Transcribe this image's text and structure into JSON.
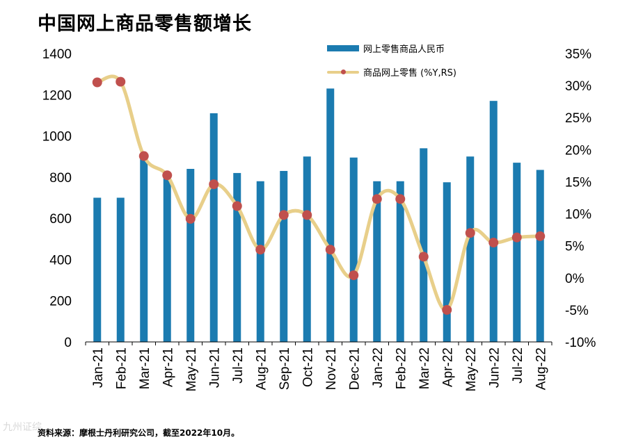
{
  "title": "中国网上商品零售额增长",
  "legend": {
    "bar_label": "网上零售商品人民币",
    "line_label": "商品网上零售 (%Y,RS)"
  },
  "footer": "资料来源：摩根士丹利研究公司，截至2022年10月。",
  "watermark": "九州证综",
  "colors": {
    "bar": "#1b7bb0",
    "line": "#e8cf8a",
    "marker": "#c0504d"
  },
  "chart_data": {
    "type": "bar+line",
    "categories": [
      "Jan-21",
      "Feb-21",
      "Mar-21",
      "Apr-21",
      "May-21",
      "Jun-21",
      "Jul-21",
      "Aug-21",
      "Sep-21",
      "Oct-21",
      "Nov-21",
      "Dec-21",
      "Jan-22",
      "Feb-22",
      "Mar-22",
      "Apr-22",
      "May-22",
      "Jun-22",
      "Jul-22",
      "Aug-22"
    ],
    "series": [
      {
        "name": "网上零售商品人民币",
        "type": "bar",
        "axis": "left",
        "values": [
          700,
          700,
          890,
          820,
          840,
          1110,
          820,
          780,
          830,
          900,
          1230,
          895,
          780,
          780,
          940,
          775,
          900,
          1170,
          870,
          835
        ]
      },
      {
        "name": "商品网上零售 (%Y,RS)",
        "type": "line",
        "axis": "right",
        "values": [
          30.5,
          30.6,
          19.0,
          16.0,
          9.2,
          14.6,
          11.2,
          4.4,
          9.8,
          9.8,
          4.4,
          0.4,
          12.3,
          12.3,
          3.3,
          -5.0,
          7.0,
          5.5,
          6.3,
          6.5
        ]
      }
    ],
    "y_left": {
      "ylim": [
        0,
        1400
      ],
      "ticks": [
        "0",
        "200",
        "400",
        "600",
        "800",
        "1000",
        "1200",
        "1400"
      ]
    },
    "y_right": {
      "ylim": [
        -10,
        35
      ],
      "ticks": [
        "-10%",
        "-5%",
        "0%",
        "5%",
        "10%",
        "15%",
        "20%",
        "25%",
        "30%",
        "35%"
      ]
    },
    "grid": false,
    "legend_position": "top-right"
  }
}
